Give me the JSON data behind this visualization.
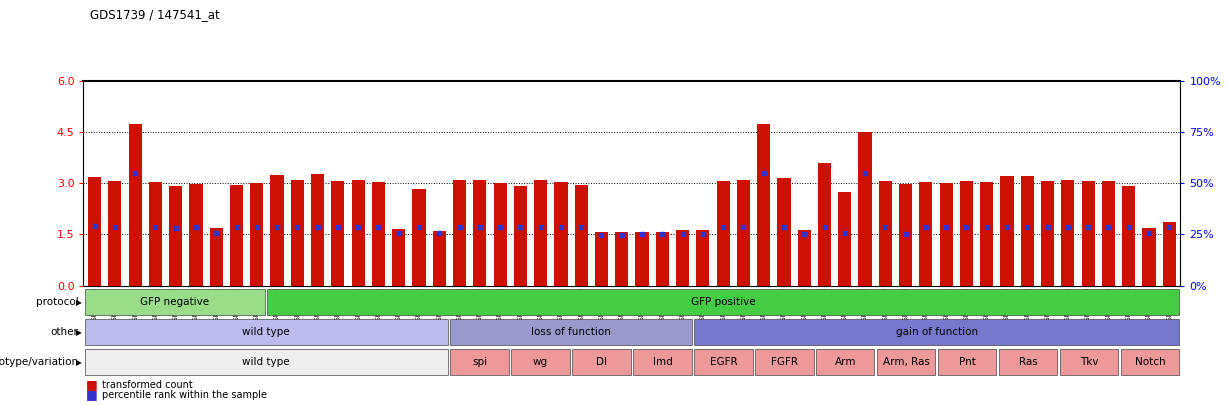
{
  "title": "GDS1739 / 147541_at",
  "gsm_ids": [
    "GSM88220",
    "GSM88221",
    "GSM88222",
    "GSM88244",
    "GSM88245",
    "GSM88246",
    "GSM88259",
    "GSM88260",
    "GSM88261",
    "GSM88223",
    "GSM88224",
    "GSM88225",
    "GSM88247",
    "GSM88248",
    "GSM88249",
    "GSM88262",
    "GSM88263",
    "GSM88264",
    "GSM88217",
    "GSM88218",
    "GSM88219",
    "GSM88241",
    "GSM88242",
    "GSM88243",
    "GSM88250",
    "GSM88251",
    "GSM88252",
    "GSM88253",
    "GSM88254",
    "GSM88255",
    "GSM88211",
    "GSM88212",
    "GSM88213",
    "GSM88214",
    "GSM88215",
    "GSM88216",
    "GSM88226",
    "GSM88227",
    "GSM88228",
    "GSM88229",
    "GSM88230",
    "GSM88231",
    "GSM88232",
    "GSM88233",
    "GSM88234",
    "GSM88235",
    "GSM88236",
    "GSM88237",
    "GSM88238",
    "GSM88239",
    "GSM88240",
    "GSM88256",
    "GSM88257",
    "GSM88258"
  ],
  "bar_values": [
    3.18,
    3.08,
    4.73,
    3.04,
    2.93,
    2.98,
    1.7,
    2.95,
    3.02,
    3.25,
    3.1,
    3.26,
    3.06,
    3.1,
    3.04,
    1.65,
    2.83,
    1.6,
    3.1,
    3.1,
    3.01,
    2.92,
    3.1,
    3.05,
    2.96,
    1.56,
    1.57,
    1.56,
    1.57,
    1.62,
    1.64,
    3.06,
    3.1,
    4.73,
    3.16,
    1.64,
    3.6,
    2.75,
    4.5,
    3.08,
    2.97,
    3.05,
    3.0,
    3.06,
    3.05,
    3.2,
    3.2,
    3.08,
    3.1,
    3.06,
    3.06,
    2.92,
    1.7,
    1.85
  ],
  "percentile_values": [
    1.75,
    1.72,
    3.3,
    1.72,
    1.68,
    1.72,
    1.55,
    1.72,
    1.73,
    1.72,
    1.72,
    1.72,
    1.72,
    1.72,
    1.72,
    1.55,
    1.72,
    1.55,
    1.72,
    1.72,
    1.72,
    1.72,
    1.72,
    1.72,
    1.72,
    1.48,
    1.48,
    1.52,
    1.52,
    1.52,
    1.52,
    1.72,
    1.72,
    3.3,
    1.72,
    1.52,
    1.72,
    1.55,
    3.3,
    1.72,
    1.52,
    1.72,
    1.72,
    1.72,
    1.72,
    1.72,
    1.72,
    1.72,
    1.72,
    1.72,
    1.72,
    1.72,
    1.55,
    1.72
  ],
  "ylim": [
    0,
    6
  ],
  "yticks_left": [
    0,
    1.5,
    3.0,
    4.5,
    6
  ],
  "yticks_right": [
    0,
    25,
    50,
    75,
    100
  ],
  "hlines": [
    1.5,
    3.0,
    4.5
  ],
  "bar_color": "#cc1100",
  "percentile_color": "#3333cc",
  "protocol_groups": [
    {
      "label": "GFP negative",
      "start": 0,
      "end": 9,
      "color": "#99dd88"
    },
    {
      "label": "GFP positive",
      "start": 9,
      "end": 54,
      "color": "#44cc44"
    }
  ],
  "other_groups": [
    {
      "label": "wild type",
      "start": 0,
      "end": 18,
      "color": "#bbbbee"
    },
    {
      "label": "loss of function",
      "start": 18,
      "end": 30,
      "color": "#9999cc"
    },
    {
      "label": "gain of function",
      "start": 30,
      "end": 54,
      "color": "#7777cc"
    }
  ],
  "genotype_groups": [
    {
      "label": "wild type",
      "start": 0,
      "end": 18,
      "color": "#eeeeee"
    },
    {
      "label": "spi",
      "start": 18,
      "end": 21,
      "color": "#ee9999"
    },
    {
      "label": "wg",
      "start": 21,
      "end": 24,
      "color": "#ee9999"
    },
    {
      "label": "Dl",
      "start": 24,
      "end": 27,
      "color": "#ee9999"
    },
    {
      "label": "lmd",
      "start": 27,
      "end": 30,
      "color": "#ee9999"
    },
    {
      "label": "EGFR",
      "start": 30,
      "end": 33,
      "color": "#ee9999"
    },
    {
      "label": "FGFR",
      "start": 33,
      "end": 36,
      "color": "#ee9999"
    },
    {
      "label": "Arm",
      "start": 36,
      "end": 39,
      "color": "#ee9999"
    },
    {
      "label": "Arm, Ras",
      "start": 39,
      "end": 42,
      "color": "#ee9999"
    },
    {
      "label": "Pnt",
      "start": 42,
      "end": 45,
      "color": "#ee9999"
    },
    {
      "label": "Ras",
      "start": 45,
      "end": 48,
      "color": "#ee9999"
    },
    {
      "label": "Tkv",
      "start": 48,
      "end": 51,
      "color": "#ee9999"
    },
    {
      "label": "Notch",
      "start": 51,
      "end": 54,
      "color": "#ee9999"
    }
  ],
  "row_labels": [
    "protocol",
    "other",
    "genotype/variation"
  ],
  "legend_label_red": "transformed count",
  "legend_label_blue": "percentile rank within the sample",
  "xtick_bg": "#cccccc"
}
